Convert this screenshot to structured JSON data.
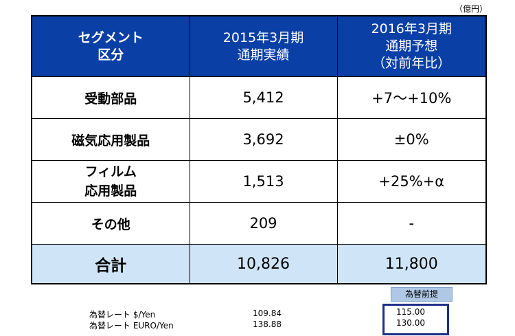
{
  "unit": "（億円）",
  "table": {
    "headers": [
      [
        "セグメント",
        "区分"
      ],
      [
        "2015年3月期",
        "通期実績"
      ],
      [
        "2016年3月期",
        "通期予想",
        "（対前年比）"
      ]
    ],
    "rows": [
      {
        "name": [
          "受動部品"
        ],
        "actual": "5,412",
        "forecast": "+7～+10%"
      },
      {
        "name": [
          "磁気応用製品"
        ],
        "actual": "3,692",
        "forecast": "±0%"
      },
      {
        "name": [
          "フィルム",
          "応用製品"
        ],
        "actual": "1,513",
        "forecast": "+25%+α"
      },
      {
        "name": [
          "その他"
        ],
        "actual": "209",
        "forecast": "-"
      }
    ],
    "total": {
      "name": "合計",
      "actual": "10,826",
      "forecast": "11,800"
    }
  },
  "fx": {
    "badge": "為替前提",
    "rows": [
      {
        "label": "為替レート $/Yen",
        "actual": "109.84",
        "assumed": "115.00"
      },
      {
        "label": "為替レート EURO/Yen",
        "actual": "138.88",
        "assumed": "130.00"
      }
    ]
  }
}
